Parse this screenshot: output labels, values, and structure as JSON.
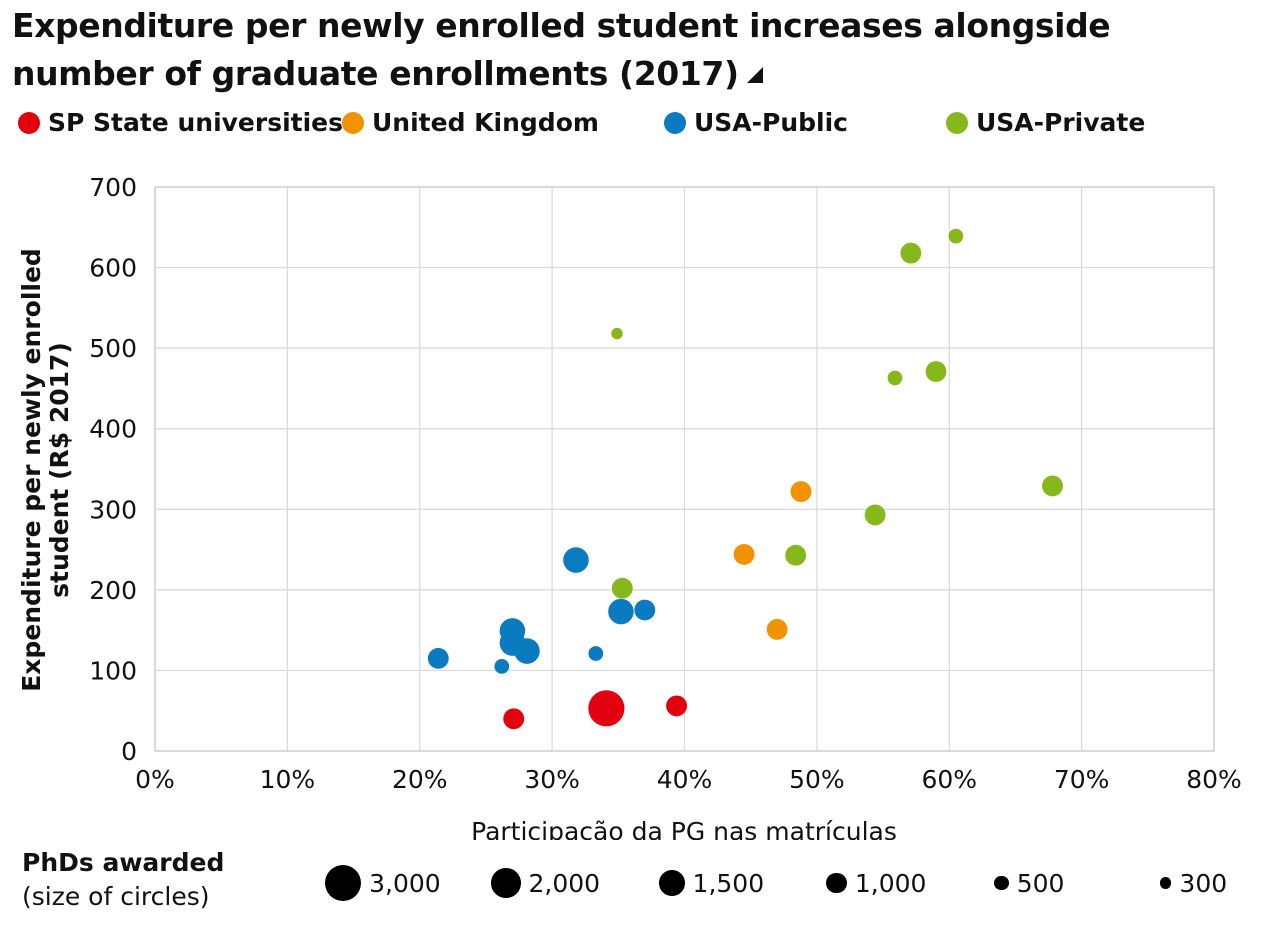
{
  "title_line1": "Expenditure per newly enrolled student increases alongside",
  "title_line2": "number of graduate enrollments (2017)",
  "legend": [
    {
      "label": "SP State universities",
      "color": "#e3000f"
    },
    {
      "label": "United Kingdom",
      "color": "#f39200"
    },
    {
      "label": "USA-Public",
      "color": "#0a7bc1"
    },
    {
      "label": "USA-Private",
      "color": "#86b81b"
    }
  ],
  "size_legend": {
    "title_bold": "PhDs awarded",
    "title_sub": "(size of circles)",
    "items": [
      {
        "label": "3,000",
        "value": 3000
      },
      {
        "label": "2,000",
        "value": 2000
      },
      {
        "label": "1,500",
        "value": 1500
      },
      {
        "label": "1,000",
        "value": 1000
      },
      {
        "label": "500",
        "value": 500
      },
      {
        "label": "300",
        "value": 300
      }
    ]
  },
  "chart_data": {
    "type": "scatter",
    "title": "Expenditure per newly enrolled student increases alongside number of graduate enrollments (2017)",
    "xlabel": "Participação da PG nas matrículas",
    "ylabel_line1": "Expenditure per newly enrolled",
    "ylabel_line2": "student (R$ 2017)",
    "xlim": [
      0,
      0.8
    ],
    "ylim": [
      0,
      700
    ],
    "x_ticks": [
      0,
      0.1,
      0.2,
      0.3,
      0.4,
      0.5,
      0.6,
      0.7,
      0.8
    ],
    "x_tick_labels": [
      "0%",
      "10%",
      "20%",
      "30%",
      "40%",
      "50%",
      "60%",
      "70%",
      "80%"
    ],
    "y_ticks": [
      0,
      100,
      200,
      300,
      400,
      500,
      600,
      700
    ],
    "y_tick_labels": [
      "0",
      "100",
      "200",
      "300",
      "400",
      "500",
      "600",
      "700"
    ],
    "grid": true,
    "size_variable": "PhDs awarded",
    "series": [
      {
        "name": "SP State universities",
        "color": "#e3000f",
        "points": [
          {
            "x": 0.271,
            "y": 40,
            "size": 1000
          },
          {
            "x": 0.341,
            "y": 53,
            "size": 3000
          },
          {
            "x": 0.394,
            "y": 56,
            "size": 1000
          }
        ]
      },
      {
        "name": "United Kingdom",
        "color": "#f39200",
        "points": [
          {
            "x": 0.445,
            "y": 244,
            "size": 1000
          },
          {
            "x": 0.488,
            "y": 322,
            "size": 1000
          },
          {
            "x": 0.47,
            "y": 151,
            "size": 1000
          }
        ]
      },
      {
        "name": "USA-Public",
        "color": "#0a7bc1",
        "points": [
          {
            "x": 0.214,
            "y": 115,
            "size": 1000
          },
          {
            "x": 0.262,
            "y": 105,
            "size": 500
          },
          {
            "x": 0.27,
            "y": 149,
            "size": 1500
          },
          {
            "x": 0.27,
            "y": 134,
            "size": 1500
          },
          {
            "x": 0.281,
            "y": 124,
            "size": 1500
          },
          {
            "x": 0.318,
            "y": 237,
            "size": 1500
          },
          {
            "x": 0.333,
            "y": 121,
            "size": 500
          },
          {
            "x": 0.352,
            "y": 173,
            "size": 1500
          },
          {
            "x": 0.37,
            "y": 175,
            "size": 1000
          }
        ]
      },
      {
        "name": "USA-Private",
        "color": "#86b81b",
        "points": [
          {
            "x": 0.349,
            "y": 518,
            "size": 300
          },
          {
            "x": 0.353,
            "y": 202,
            "size": 1000
          },
          {
            "x": 0.484,
            "y": 243,
            "size": 1000
          },
          {
            "x": 0.544,
            "y": 293,
            "size": 1000
          },
          {
            "x": 0.559,
            "y": 463,
            "size": 500
          },
          {
            "x": 0.571,
            "y": 618,
            "size": 1000
          },
          {
            "x": 0.59,
            "y": 471,
            "size": 1000
          },
          {
            "x": 0.605,
            "y": 639,
            "size": 500
          },
          {
            "x": 0.678,
            "y": 329,
            "size": 1000
          }
        ]
      }
    ]
  }
}
